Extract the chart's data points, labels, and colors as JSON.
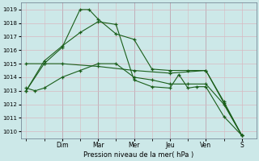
{
  "xlabel": "Pression niveau de la mer( hPa )",
  "ylim": [
    1009.5,
    1019.5
  ],
  "yticks": [
    1010,
    1011,
    1012,
    1013,
    1014,
    1015,
    1016,
    1017,
    1018,
    1019
  ],
  "background_color": "#cce8e8",
  "grid_color": "#d8b8c0",
  "line_color": "#1a5e1a",
  "day_labels": [
    "Dim",
    "Mar",
    "Mer",
    "Jeu",
    "Ven",
    "S"
  ],
  "day_positions": [
    2,
    4,
    6,
    8,
    10,
    12
  ],
  "xlim": [
    -0.3,
    12.8
  ],
  "lines": [
    {
      "x": [
        0,
        1,
        2,
        3,
        3.5,
        4,
        5,
        6,
        7,
        8,
        9,
        10,
        11,
        12
      ],
      "y": [
        1013.0,
        1015.0,
        1016.2,
        1019.0,
        1019.0,
        1018.3,
        1017.2,
        1016.8,
        1014.6,
        1014.5,
        1014.5,
        1014.5,
        1012.1,
        1009.7
      ]
    },
    {
      "x": [
        0,
        1,
        2,
        3,
        4,
        5,
        6,
        7,
        8,
        8.5,
        9,
        9.5,
        10,
        11,
        12
      ],
      "y": [
        1013.0,
        1015.2,
        1016.3,
        1017.3,
        1018.1,
        1017.9,
        1013.8,
        1013.3,
        1013.2,
        1014.2,
        1013.2,
        1013.3,
        1013.3,
        1011.1,
        1009.7
      ]
    },
    {
      "x": [
        0,
        1,
        2,
        4,
        6,
        8,
        10,
        11,
        12
      ],
      "y": [
        1015.0,
        1015.0,
        1015.0,
        1014.8,
        1014.5,
        1014.3,
        1014.5,
        1012.2,
        1009.7
      ]
    },
    {
      "x": [
        0,
        0.5,
        1,
        2,
        3,
        4,
        5,
        6,
        7,
        8,
        9,
        10,
        11,
        12
      ],
      "y": [
        1013.2,
        1013.0,
        1013.2,
        1014.0,
        1014.5,
        1015.0,
        1015.0,
        1014.0,
        1013.8,
        1013.5,
        1013.5,
        1013.5,
        1012.0,
        1009.7
      ]
    }
  ]
}
